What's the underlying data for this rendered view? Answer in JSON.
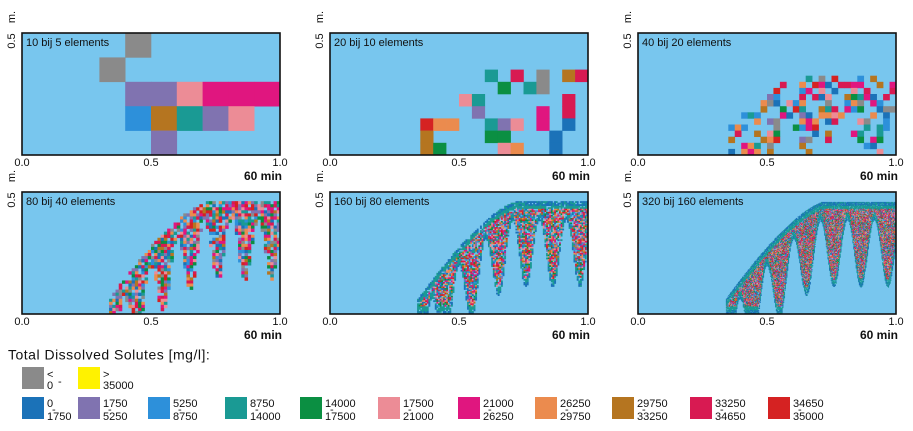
{
  "figure": {
    "axis": {
      "y_top": "0.5",
      "y_unit": "m.",
      "xticks": [
        "0.0",
        "0.5",
        "1.0"
      ],
      "x_unit": "60 min"
    },
    "panels": [
      {
        "label": "10 bij 5 elements",
        "cols": 10,
        "rows": 5
      },
      {
        "label": "20 bij 10 elements",
        "cols": 20,
        "rows": 10
      },
      {
        "label": "40 bij 20 elements",
        "cols": 40,
        "rows": 20
      },
      {
        "label": "80 bij 40 elements",
        "cols": 80,
        "rows": 40
      },
      {
        "label": "160 bij 80 elements",
        "cols": 160,
        "rows": 80
      },
      {
        "label": "320 bij 160 elements",
        "cols": 320,
        "rows": 160
      }
    ],
    "background_color": "#78c6ee",
    "legend": {
      "title": "Total Dissolved Solutes [mg/l]:",
      "separator": "-",
      "out_of_range": [
        {
          "color": "#8a8a8a",
          "upper": "<",
          "lower": "0"
        },
        {
          "color": "#fff200",
          "upper": ">",
          "lower": "35000"
        }
      ],
      "classes": [
        {
          "color": "#1b72b8",
          "from": "0",
          "to": "1750"
        },
        {
          "color": "#8073b0",
          "from": "1750",
          "to": "5250"
        },
        {
          "color": "#2d90da",
          "from": "5250",
          "to": "8750"
        },
        {
          "color": "#1a9a94",
          "from": "8750",
          "to": "14000"
        },
        {
          "color": "#0b8f42",
          "from": "14000",
          "to": "17500"
        },
        {
          "color": "#ec8c96",
          "from": "17500",
          "to": "21000"
        },
        {
          "color": "#e0167f",
          "from": "21000",
          "to": "26250"
        },
        {
          "color": "#eb8b4e",
          "from": "26250",
          "to": "29750"
        },
        {
          "color": "#b57520",
          "from": "29750",
          "to": "33250"
        },
        {
          "color": "#d81a52",
          "from": "33250",
          "to": "34650"
        },
        {
          "color": "#d52222",
          "from": "34650",
          "to": "35000"
        }
      ]
    }
  }
}
